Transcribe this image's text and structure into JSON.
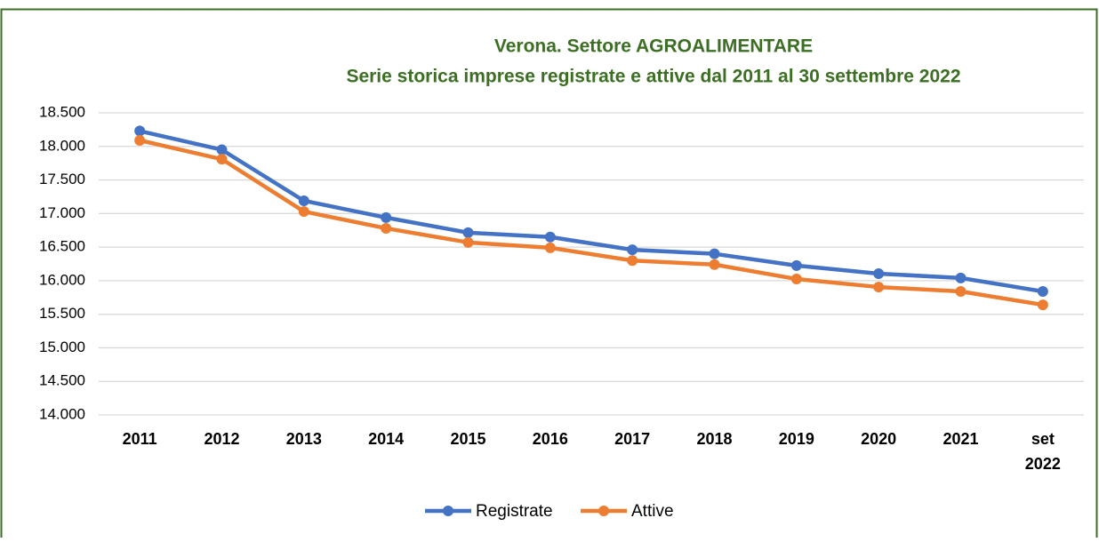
{
  "chart_data": {
    "type": "line",
    "title": "Verona. Settore AGROALIMENTARE",
    "subtitle": "Serie storica imprese registrate e attive dal 2011 al 30 settembre 2022",
    "categories": [
      "2011",
      "2012",
      "2013",
      "2014",
      "2015",
      "2016",
      "2017",
      "2018",
      "2019",
      "2020",
      "2021",
      "set 2022"
    ],
    "series": [
      {
        "name": "Registrate",
        "color": "#4472c4",
        "values": [
          18230,
          17950,
          17190,
          16940,
          16715,
          16650,
          16460,
          16400,
          16225,
          16105,
          16040,
          15840
        ]
      },
      {
        "name": "Attive",
        "color": "#ed7d31",
        "values": [
          18090,
          17810,
          17030,
          16780,
          16570,
          16490,
          16300,
          16240,
          16025,
          15905,
          15840,
          15640
        ]
      }
    ],
    "ylim": [
      14000,
      18500
    ],
    "yticks": [
      {
        "value": 14000,
        "label": "14.000"
      },
      {
        "value": 14500,
        "label": "14.500"
      },
      {
        "value": 15000,
        "label": "15.000"
      },
      {
        "value": 15500,
        "label": "15.500"
      },
      {
        "value": 16000,
        "label": "16.000"
      },
      {
        "value": 16500,
        "label": "16.500"
      },
      {
        "value": 17000,
        "label": "17.000"
      },
      {
        "value": 17500,
        "label": "17.500"
      },
      {
        "value": 18000,
        "label": "18.000"
      },
      {
        "value": 18500,
        "label": "18.500"
      }
    ],
    "grid": true,
    "legend": "bottom"
  }
}
